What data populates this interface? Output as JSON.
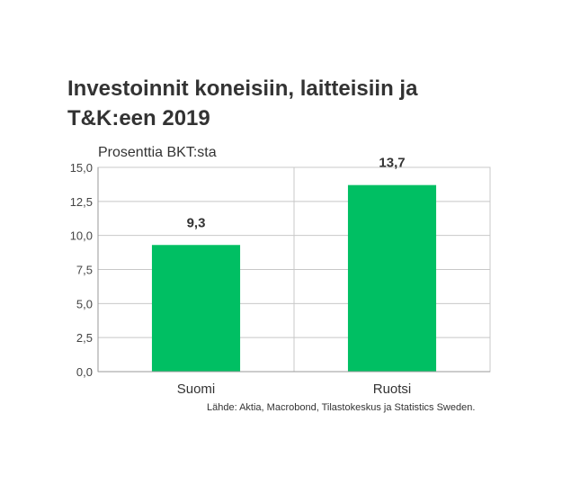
{
  "chart_data": {
    "type": "bar",
    "title_lines": [
      "Investoinnit koneisiin, laitteisiin ja",
      "T&K:een 2019"
    ],
    "ylabel": "Prosenttia BKT:sta",
    "categories": [
      "Suomi",
      "Ruotsi"
    ],
    "values": [
      9.3,
      13.7
    ],
    "data_labels": [
      "9,3",
      "13,7"
    ],
    "ylim": [
      0,
      15
    ],
    "yticks": [
      0,
      2.5,
      5,
      7.5,
      10,
      12.5,
      15
    ],
    "ytick_labels": [
      "0,0",
      "2,5",
      "5,0",
      "7,5",
      "10,0",
      "12,5",
      "15,0"
    ],
    "grid": true,
    "bar_color": "#00bf63",
    "source": "Lähde: Aktia, Macrobond, Tilastokeskus ja Statistics Sweden."
  }
}
